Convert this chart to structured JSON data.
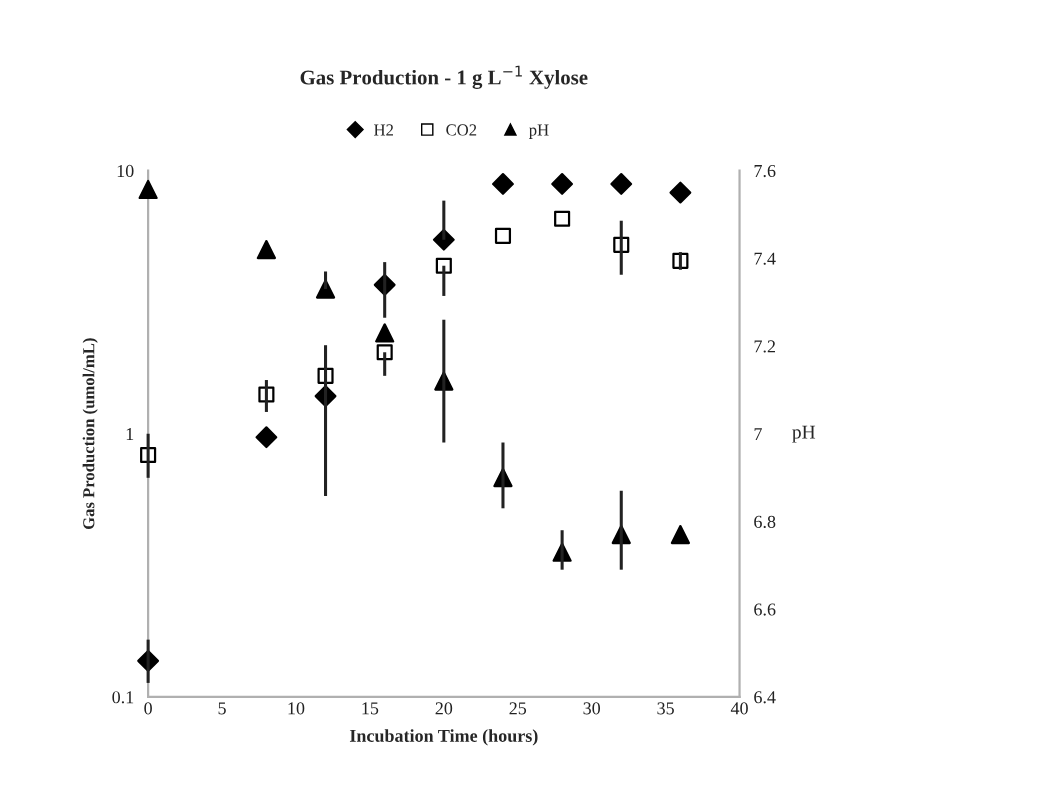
{
  "chart_data": {
    "type": "scatter",
    "title": "Gas Production - 1 g L$^{−1}$ Xylose",
    "xlabel": "Incubation Time (hours)",
    "ylabel": "Gas Production (umol/mL)",
    "y2label": "pH",
    "x": [
      0,
      8,
      12,
      16,
      20,
      24,
      28,
      32,
      36
    ],
    "series": [
      {
        "name": "H2",
        "color": "#000000",
        "marker": "diamond",
        "values": [
          0.137,
          0.97,
          1.39,
          3.68,
          5.46,
          8.9,
          8.9,
          8.9,
          8.25
        ],
        "errors": [
          [
            0.113,
            0.165
          ],
          null,
          [
            0.58,
            2.17
          ],
          [
            2.76,
            4.49
          ],
          [
            5.46,
            7.69
          ],
          null,
          null,
          null,
          null
        ]
      },
      {
        "name": "CO2",
        "color": "#000000",
        "marker": "square",
        "values": [
          0.83,
          1.41,
          1.66,
          2.04,
          4.35,
          5.65,
          6.56,
          5.22,
          4.54
        ],
        "errors": [
          [
            0.68,
            1.0
          ],
          [
            1.21,
            1.6
          ],
          null,
          [
            1.66,
            2.04
          ],
          [
            3.34,
            4.35
          ],
          null,
          null,
          [
            4.02,
            6.45
          ],
          [
            4.2,
            4.9
          ]
        ]
      },
      {
        "name": "pH",
        "color": "#000000",
        "marker": "triangle",
        "axis": "y2",
        "values": [
          7.557,
          7.42,
          7.33,
          7.23,
          7.12,
          6.9,
          6.73,
          6.77,
          6.77
        ],
        "errors": [
          null,
          null,
          [
            7.33,
            7.37
          ],
          null,
          [
            6.98,
            7.26
          ],
          [
            6.83,
            6.98
          ],
          [
            6.69,
            6.78
          ],
          [
            6.69,
            6.87
          ],
          null
        ]
      }
    ],
    "log": "y",
    "xlim": [
      0,
      40
    ],
    "xticks": [
      0,
      5,
      10,
      15,
      20,
      25,
      30,
      35,
      40
    ],
    "ylim": [
      0.1,
      10
    ],
    "yticks": [
      0.1,
      1,
      10
    ],
    "y2lim": [
      6.4,
      7.6
    ],
    "y2ticks": [
      6.4,
      6.6,
      6.8,
      7,
      7.2,
      7.4,
      7.6
    ],
    "legend": "top",
    "grid": false
  }
}
